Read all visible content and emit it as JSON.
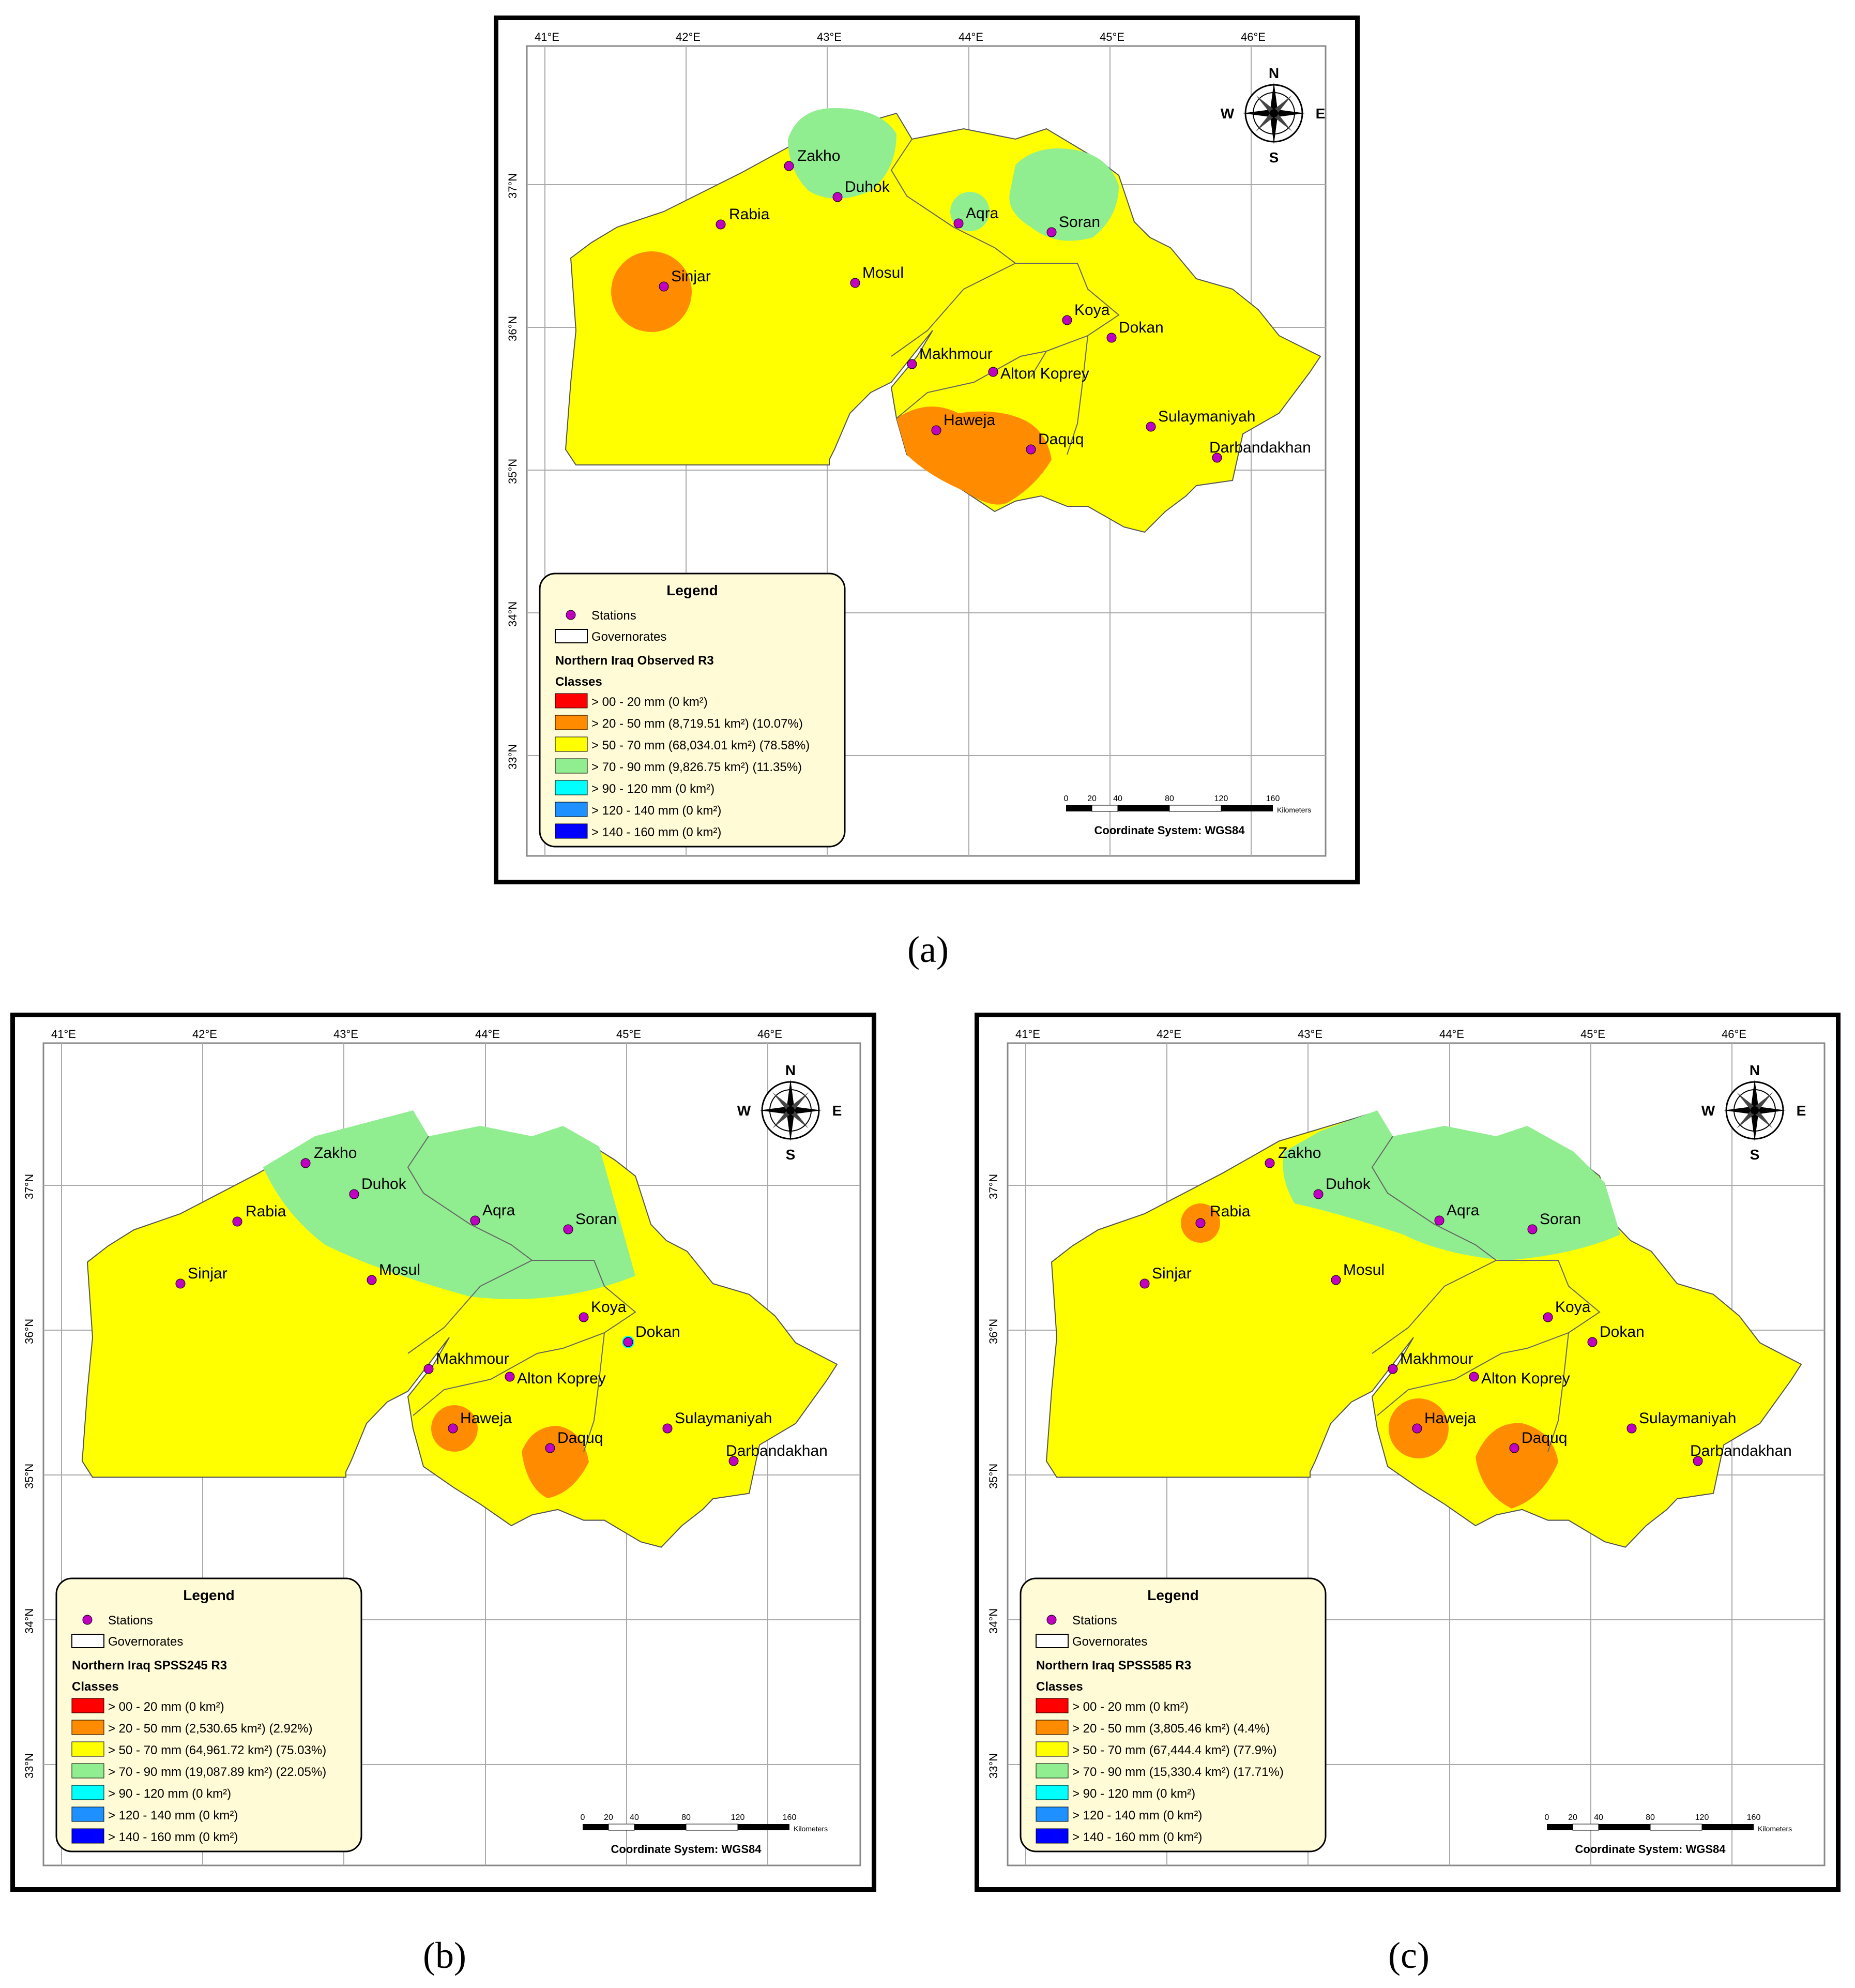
{
  "captions": {
    "a": "(a)",
    "b": "(b)",
    "c": "(c)"
  },
  "lon_ticks": [
    "41°E",
    "42°E",
    "43°E",
    "44°E",
    "45°E",
    "46°E"
  ],
  "lat_ticks": [
    "37°N",
    "36°N",
    "35°N",
    "34°N",
    "33°N"
  ],
  "compass": {
    "n": "N",
    "s": "S",
    "e": "E",
    "w": "W"
  },
  "scale": {
    "ticks": [
      "0",
      "20",
      "40",
      "80",
      "120",
      "160"
    ],
    "unit": "Kilometers",
    "coord_system": "Coordinate System: WGS84"
  },
  "legend_common": {
    "title": "Legend",
    "stations": "Stations",
    "governorates": "Governorates",
    "classes": "Classes"
  },
  "colors": {
    "red": "#ff0000",
    "orange": "#ff8c00",
    "yellow": "#ffff00",
    "green": "#90ee90",
    "cyan": "#00ffff",
    "blue_mid": "#1e90ff",
    "blue": "#0000ff",
    "station": "#c000c0",
    "legend_bg": "#fffbd6"
  },
  "stations": [
    "Zakho",
    "Duhok",
    "Rabia",
    "Sinjar",
    "Mosul",
    "Aqra",
    "Soran",
    "Koya",
    "Dokan",
    "Makhmour",
    "Alton Koprey",
    "Haweja",
    "Daquq",
    "Sulaymaniyah",
    "Darbandakhan"
  ],
  "maps": [
    {
      "id": "a",
      "legend_heading": "Northern Iraq Observed R3",
      "classes": [
        "> 00 - 20 mm (0 km²)",
        "> 20 - 50 mm (8,719.51 km²) (10.07%)",
        "> 50 - 70 mm (68,034.01 km²) (78.58%)",
        "> 70 - 90 mm (9,826.75 km²) (11.35%)",
        "> 90 - 120 mm (0 km²)",
        "> 120 - 140 mm (0 km²)",
        "> 140 - 160 mm (0 km²)"
      ]
    },
    {
      "id": "b",
      "legend_heading": "Northern Iraq SPSS245 R3",
      "classes": [
        "> 00 - 20 mm (0 km²)",
        "> 20 - 50 mm (2,530.65 km²) (2.92%)",
        "> 50 - 70 mm (64,961.72 km²) (75.03%)",
        "> 70 - 90 mm (19,087.89 km²) (22.05%)",
        "> 90 - 120 mm (0 km²)",
        "> 120 - 140 mm (0 km²)",
        "> 140 - 160 mm (0 km²)"
      ]
    },
    {
      "id": "c",
      "legend_heading": "Northern Iraq SPSS585 R3",
      "classes": [
        "> 00 - 20 mm (0 km²)",
        "> 20 - 50 mm (3,805.46 km²) (4.4%)",
        "> 50 - 70 mm (67,444.4 km²) (77.9%)",
        "> 70 - 90 mm (15,330.4 km²) (17.71%)",
        "> 90 - 120 mm (0 km²)",
        "> 120 - 140 mm (0 km²)",
        "> 140 - 160 mm (0 km²)"
      ]
    }
  ]
}
